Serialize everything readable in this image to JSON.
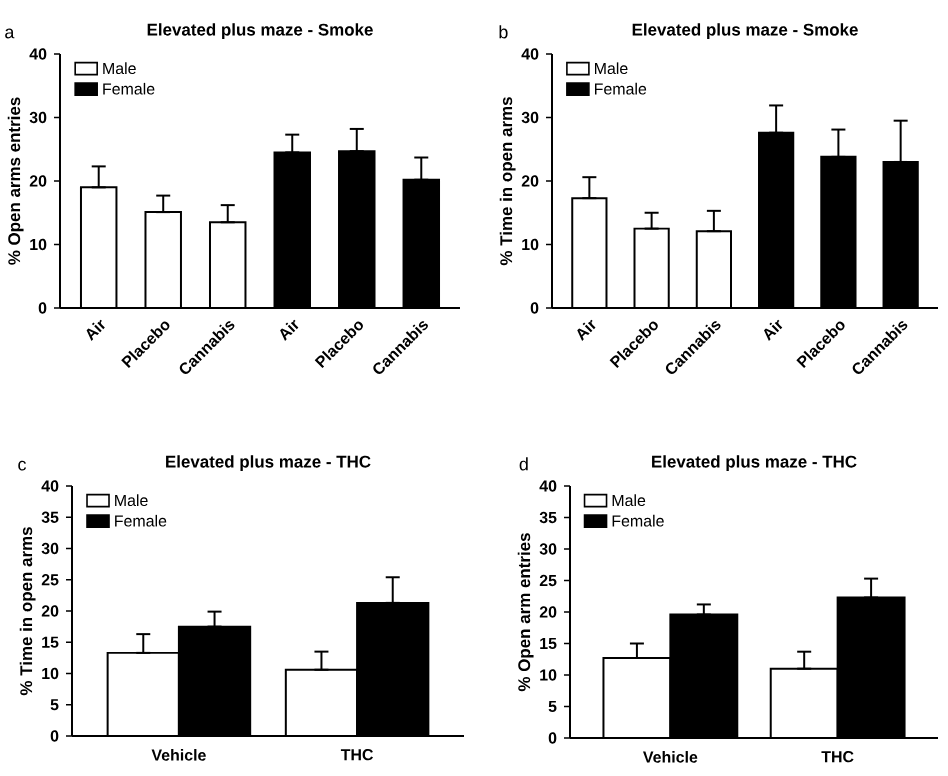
{
  "chart_data": [
    {
      "type": "bar",
      "title": "Elevated plus maze - Smoke",
      "ylabel": "% Open arms entries",
      "annotations": [
        "a"
      ],
      "categories": [
        "Air",
        "Placebo",
        "Cannabis",
        "Air",
        "Placebo",
        "Cannabis"
      ],
      "ylim": [
        0,
        40
      ],
      "yticks": [
        0,
        10,
        20,
        30,
        40
      ],
      "legend": "top left",
      "series": [
        {
          "name": "Male",
          "color": "#ffffff",
          "values": [
            19,
            15.1,
            13.5,
            null,
            null,
            null
          ],
          "errors": [
            [
              19,
              22.3
            ],
            [
              15.1,
              17.7
            ],
            [
              13.5,
              16.2
            ],
            null,
            null,
            null
          ]
        },
        {
          "name": "Female",
          "color": "#000000",
          "values": [
            null,
            null,
            null,
            24.5,
            24.7,
            20.2
          ],
          "errors": [
            null,
            null,
            null,
            [
              24.5,
              27.3
            ],
            [
              24.7,
              28.2
            ],
            [
              20.2,
              23.7
            ]
          ]
        }
      ]
    },
    {
      "type": "bar",
      "title": "Elevated plus maze - Smoke",
      "ylabel": "% Time in open arms",
      "annotations": [
        "b"
      ],
      "categories": [
        "Air",
        "Placebo",
        "Cannabis",
        "Air",
        "Placebo",
        "Cannabis"
      ],
      "ylim": [
        0,
        40
      ],
      "yticks": [
        0,
        10,
        20,
        30,
        40
      ],
      "legend": "top left",
      "series": [
        {
          "name": "Male",
          "color": "#ffffff",
          "values": [
            17.3,
            12.5,
            12.1,
            null,
            null,
            null
          ],
          "errors": [
            [
              17.3,
              20.6
            ],
            [
              12.5,
              15.0
            ],
            [
              12.1,
              15.3
            ],
            null,
            null,
            null
          ]
        },
        {
          "name": "Female",
          "color": "#000000",
          "values": [
            null,
            null,
            null,
            27.6,
            23.8,
            23.0
          ],
          "errors": [
            null,
            null,
            null,
            [
              27.6,
              31.9
            ],
            [
              23.8,
              28.1
            ],
            [
              23.0,
              29.5
            ]
          ]
        }
      ]
    },
    {
      "type": "bar",
      "title": "Elevated plus maze - THC",
      "ylabel": "% Time in open arms",
      "annotations": [
        "c"
      ],
      "categories": [
        "Vehicle",
        "THC"
      ],
      "ylim": [
        0,
        40
      ],
      "yticks": [
        0,
        5,
        10,
        15,
        20,
        25,
        30,
        35,
        40
      ],
      "legend": "top left",
      "series": [
        {
          "name": "Male",
          "color": "#ffffff",
          "values": [
            13.3,
            10.6
          ],
          "errors": [
            [
              13.3,
              16.3
            ],
            [
              10.6,
              13.5
            ]
          ]
        },
        {
          "name": "Female",
          "color": "#000000",
          "values": [
            17.5,
            21.3
          ],
          "errors": [
            [
              17.5,
              19.9
            ],
            [
              21.3,
              25.4
            ]
          ]
        }
      ]
    },
    {
      "type": "bar",
      "title": "Elevated plus maze - THC",
      "ylabel": "% Open arm entries",
      "annotations": [
        "d"
      ],
      "categories": [
        "Vehicle",
        "THC"
      ],
      "ylim": [
        0,
        40
      ],
      "yticks": [
        0,
        5,
        10,
        15,
        20,
        25,
        30,
        35,
        40
      ],
      "legend": "top left",
      "series": [
        {
          "name": "Male",
          "color": "#ffffff",
          "values": [
            12.7,
            11.0
          ],
          "errors": [
            [
              12.7,
              15.0
            ],
            [
              11.0,
              13.7
            ]
          ]
        },
        {
          "name": "Female",
          "color": "#000000",
          "values": [
            19.6,
            22.3
          ],
          "errors": [
            [
              19.6,
              21.2
            ],
            [
              22.3,
              25.3
            ]
          ]
        }
      ]
    }
  ]
}
